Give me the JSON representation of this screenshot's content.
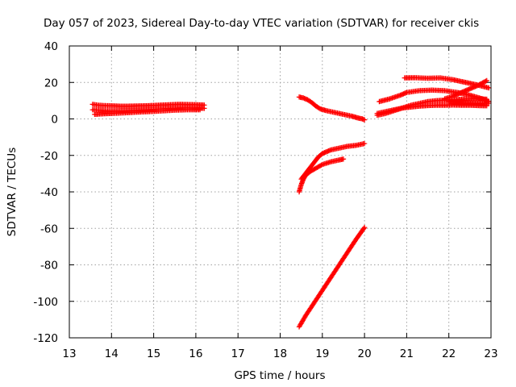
{
  "chart_data": {
    "type": "scatter",
    "title": "Day 057 of 2023, Sidereal Day-to-day VTEC variation (SDTVAR) for receiver ckis",
    "xlabel": "GPS time / hours",
    "ylabel": "SDTVAR / TECUs",
    "xlim": [
      13,
      23
    ],
    "ylim": [
      -120,
      40
    ],
    "xticks": [
      "13",
      "14",
      "15",
      "16",
      "17",
      "18",
      "19",
      "20",
      "21",
      "22",
      "23"
    ],
    "yticks": [
      "40",
      "20",
      "0",
      "-20",
      "-40",
      "-60",
      "-80",
      "-100",
      "-120"
    ],
    "grid": true,
    "marker": "plus",
    "color": "#ff0000",
    "series": [
      {
        "x": [
          13.55,
          13.7,
          13.85,
          14.0,
          14.2,
          14.4,
          14.6,
          14.8,
          15.0,
          15.2,
          15.4,
          15.6,
          15.8,
          16.0,
          16.2
        ],
        "y": [
          8,
          7.5,
          7.3,
          7.2,
          7.0,
          7.0,
          7.1,
          7.2,
          7.4,
          7.6,
          7.8,
          8.0,
          7.9,
          7.8,
          7.6
        ]
      },
      {
        "x": [
          13.55,
          13.7,
          13.85,
          14.0,
          14.2,
          14.4,
          14.6,
          14.8,
          15.0,
          15.2,
          15.4,
          15.6,
          15.8,
          16.0,
          16.2
        ],
        "y": [
          5,
          4.8,
          4.5,
          4.3,
          4.3,
          4.4,
          4.6,
          4.9,
          5.2,
          5.5,
          5.8,
          6.0,
          6.0,
          5.9,
          5.8
        ]
      },
      {
        "x": [
          13.6,
          13.8,
          14.0,
          14.3,
          14.6,
          14.9,
          15.2,
          15.5,
          15.8,
          16.1
        ],
        "y": [
          2.5,
          2.8,
          3.0,
          3.3,
          3.7,
          4.0,
          4.4,
          4.8,
          5.0,
          5.0
        ]
      },
      {
        "x": [
          18.45,
          18.55,
          18.65,
          18.75,
          18.85,
          18.95,
          19.1,
          19.3,
          19.5,
          19.7,
          19.85,
          19.95,
          20.0
        ],
        "y": [
          12,
          11.5,
          10.5,
          9,
          7,
          5.5,
          4.5,
          3.5,
          2.5,
          1.5,
          0.5,
          0,
          -0.5
        ]
      },
      {
        "x": [
          18.5,
          18.6,
          18.7,
          18.8,
          18.9,
          19.0,
          19.2,
          19.4,
          19.6,
          19.8,
          20.0
        ],
        "y": [
          -33,
          -30,
          -27,
          -24,
          -21,
          -19,
          -17,
          -16,
          -15,
          -14.5,
          -13.5
        ]
      },
      {
        "x": [
          18.45,
          18.5,
          18.55,
          18.6,
          18.7,
          18.85,
          19.0,
          19.2,
          19.4,
          19.5
        ],
        "y": [
          -40,
          -36,
          -33,
          -31,
          -29,
          -27,
          -25,
          -23.5,
          -22.5,
          -22
        ]
      },
      {
        "x": [
          18.45,
          18.6,
          18.8,
          19.0,
          19.2,
          19.4,
          19.6,
          19.8,
          20.0
        ],
        "y": [
          -114,
          -108,
          -101,
          -94,
          -87,
          -80,
          -73,
          -66,
          -59.5
        ]
      },
      {
        "x": [
          20.3,
          20.5,
          20.7,
          20.9,
          21.1,
          21.3,
          21.5,
          21.7,
          21.9,
          22.1,
          22.3,
          22.5,
          22.7,
          22.9
        ],
        "y": [
          3,
          4,
          5,
          6,
          6.5,
          7,
          7.3,
          7.5,
          7.5,
          7.6,
          7.5,
          7.5,
          7.3,
          7.2
        ]
      },
      {
        "x": [
          20.35,
          20.6,
          20.85,
          21.0,
          21.3,
          21.6,
          21.9,
          22.2,
          22.5,
          22.8,
          22.95
        ],
        "y": [
          9.5,
          11,
          13,
          14.5,
          15.5,
          15.8,
          15.5,
          14.5,
          13,
          11,
          9.5
        ]
      },
      {
        "x": [
          20.3,
          20.5,
          20.7,
          20.9,
          21.1,
          21.3,
          21.5,
          21.7,
          21.9,
          22.1,
          22.3,
          22.5,
          22.7,
          22.9
        ],
        "y": [
          2,
          3,
          4.5,
          6,
          7.5,
          8.5,
          9.5,
          10,
          10.3,
          10.5,
          10.8,
          11,
          11,
          10.8
        ]
      },
      {
        "x": [
          20.95,
          21.2,
          21.5,
          21.8,
          22.1,
          22.4,
          22.7,
          22.95
        ],
        "y": [
          22.5,
          22.6,
          22.3,
          22.5,
          21.5,
          20,
          18.5,
          17
        ]
      },
      {
        "x": [
          21.9,
          22.1,
          22.3,
          22.5,
          22.7,
          22.9
        ],
        "y": [
          11,
          12.5,
          14.5,
          16.5,
          18.5,
          21
        ]
      },
      {
        "x": [
          22.0,
          22.2,
          22.4,
          22.6,
          22.8,
          22.95
        ],
        "y": [
          9.5,
          9.2,
          9.0,
          8.8,
          8.7,
          8.6
        ]
      }
    ]
  }
}
